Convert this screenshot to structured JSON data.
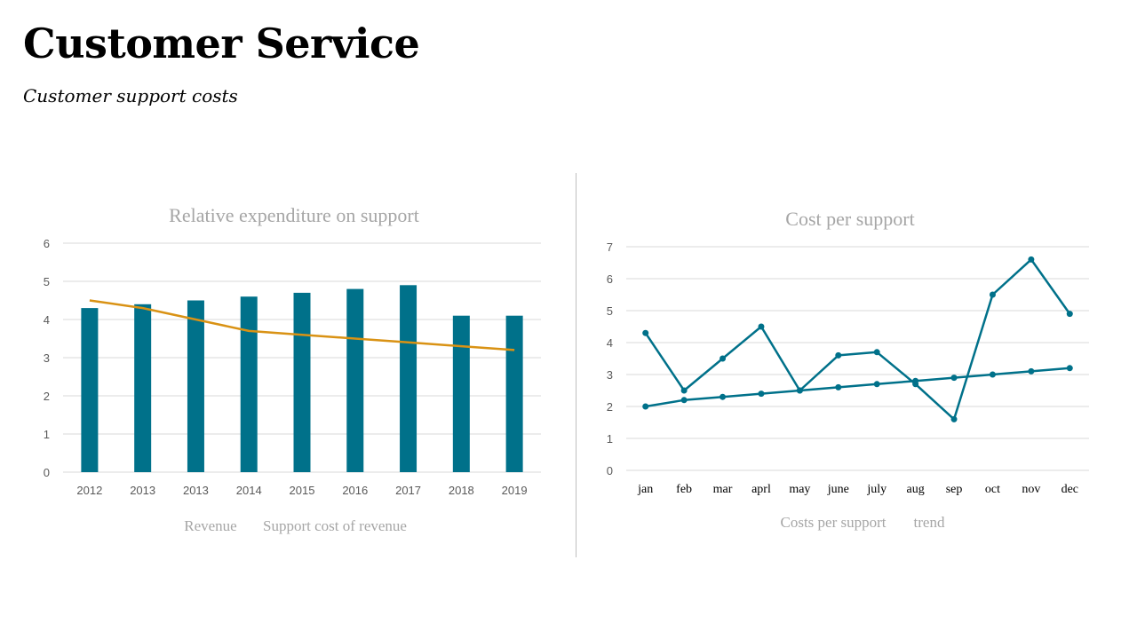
{
  "slide": {
    "title": "Customer Service",
    "subtitle": "Customer support costs"
  },
  "colors": {
    "teal": "#00718a",
    "orange": "#d99214",
    "grid": "#d9d9d9"
  },
  "chart_data": [
    {
      "type": "bar",
      "title": "Relative expenditure on support",
      "categories": [
        "2012",
        "2013",
        "2013",
        "2014",
        "2015",
        "2016",
        "2017",
        "2018",
        "2019"
      ],
      "ylim": [
        0,
        6
      ],
      "yticks": [
        0,
        1,
        2,
        3,
        4,
        5,
        6
      ],
      "grid": true,
      "legend_position": "bottom",
      "series": [
        {
          "name": "Revenue",
          "kind": "bar",
          "color": "#00718a",
          "values": [
            4.3,
            4.4,
            4.5,
            4.6,
            4.7,
            4.8,
            4.9,
            4.1,
            4.1
          ]
        },
        {
          "name": "Support cost of revenue",
          "kind": "line",
          "color": "#d99214",
          "values": [
            4.5,
            4.3,
            4.0,
            3.7,
            3.6,
            3.5,
            3.4,
            3.3,
            3.2
          ]
        }
      ]
    },
    {
      "type": "line",
      "title": "Cost per support",
      "categories": [
        "jan",
        "feb",
        "mar",
        "aprl",
        "may",
        "june",
        "july",
        "aug",
        "sep",
        "oct",
        "nov",
        "dec"
      ],
      "ylim": [
        0,
        7
      ],
      "yticks": [
        0,
        1,
        2,
        3,
        4,
        5,
        6,
        7
      ],
      "grid": true,
      "legend_position": "bottom",
      "series": [
        {
          "name": "Costs per support",
          "color": "#00718a",
          "values": [
            4.3,
            2.5,
            3.5,
            4.5,
            2.5,
            3.6,
            3.7,
            2.7,
            1.6,
            5.5,
            6.6,
            4.9
          ]
        },
        {
          "name": "trend",
          "color": "#00718a",
          "values": [
            2.0,
            2.2,
            2.3,
            2.4,
            2.5,
            2.6,
            2.7,
            2.8,
            2.9,
            3.0,
            3.1,
            3.2
          ]
        }
      ]
    }
  ]
}
